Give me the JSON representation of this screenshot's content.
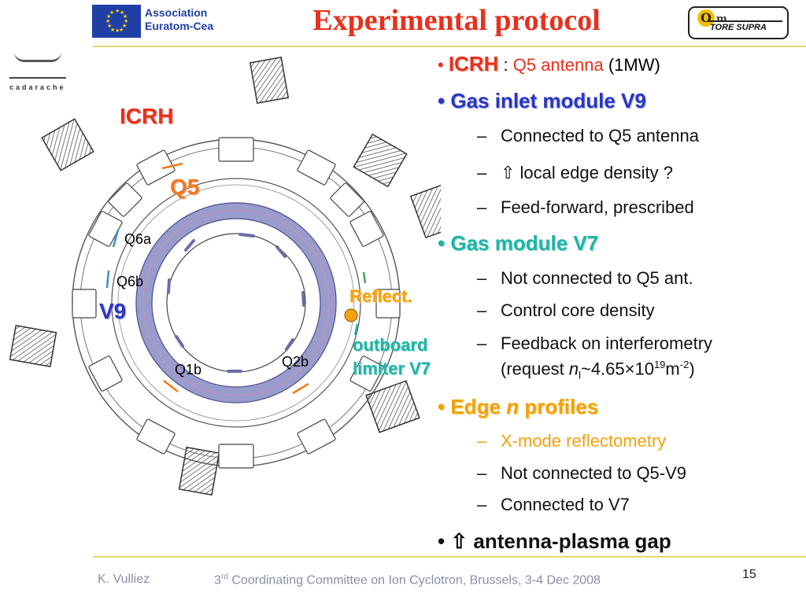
{
  "header": {
    "title": "Experimental protocol",
    "association_line1": "Association",
    "association_line2": "Euratom-Cea",
    "tore_supra_logo": "TORE SUPRA",
    "cadarache": "cadarache"
  },
  "bullets": {
    "icrh_label": "ICRH",
    "icrh_colon": " : ",
    "icrh_antenna": "Q5 antenna",
    "icrh_power": " (1MW)",
    "v9_heading": "Gas inlet module V9",
    "v9_items": [
      "Connected to Q5 antenna",
      "⇧ local edge density ?",
      "Feed-forward, prescribed"
    ],
    "v7_heading": "Gas module V7",
    "v7_items": [
      "Not connected to Q5 ant.",
      "Control core density",
      "Feedback on interferometry"
    ],
    "v7_request_pre": "(request ",
    "v7_request_n": "n",
    "v7_request_sub": "l",
    "v7_request_mid": "~4.65×10",
    "v7_request_exp": "19",
    "v7_request_unit": "m",
    "v7_request_unit_exp": "-2",
    "v7_request_end": ")",
    "edge_heading_pre": "Edge ",
    "edge_heading_n": "n",
    "edge_heading_post": " profiles",
    "edge_items": [
      "X-mode reflectometry",
      "Not connected to Q5-V9",
      "Connected to V7"
    ],
    "final_bullet": "⇧ antenna-plasma gap",
    "dash": "–",
    "bullet_char": "•"
  },
  "diagram": {
    "icrh": "ICRH",
    "q5": "Q5",
    "q6a": "Q6a",
    "q6b": "Q6b",
    "v9": "V9",
    "reflect": "Reflect.",
    "outboard_line1": "outboard",
    "outboard_line2": "limiter V7",
    "q1b": "Q1b",
    "q2b": "Q2b"
  },
  "footer": {
    "author": "K. Vulliez",
    "conf_num": "3",
    "conf_sup": "rd",
    "conf_text": " Coordinating Committee on Ion Cyclotron, Brussels, 3-4 Dec 2008",
    "page": "15"
  },
  "colors": {
    "title_red": "#e8301c",
    "heading_blue": "#2b36c2",
    "heading_teal": "#22b3a6",
    "heading_orange": "#f2a20d",
    "plasma_ring": "#9a9ccc",
    "footer_gray": "#8a8fa8"
  }
}
